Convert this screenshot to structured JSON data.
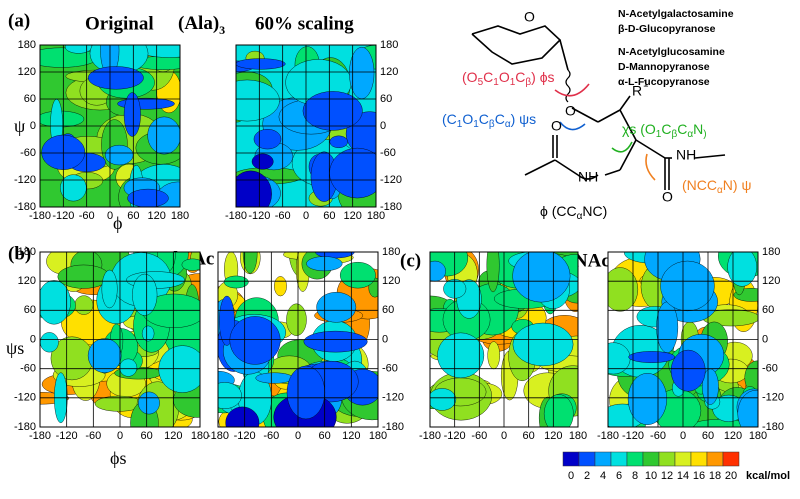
{
  "panel_labels": [
    "(a)",
    "(b)",
    "(c)"
  ],
  "titles": {
    "original": "Original",
    "ala": "(Ala)",
    "ala_sub": "3",
    "scaling": "60% scaling",
    "alpha": "α-GalNAc",
    "beta": "β-GalNAc"
  },
  "axes": {
    "phi": "ϕ",
    "psi": "ψ",
    "phis": "ϕs",
    "psis": "ψs"
  },
  "ticks": [
    "-180",
    "-120",
    "-60",
    "0",
    "60",
    "120",
    "180"
  ],
  "sugars": [
    "N-Acetylgalactosamine",
    "β-D-Glucopyranose",
    "N-Acetylglucosamine",
    "D-Mannopyranose",
    "α-L-Fucopyranose"
  ],
  "molecule": {
    "ring_o": "O",
    "ether_o": "O",
    "r": "R",
    "r_sup": "1",
    "nh1": "NH",
    "nh2": "NH",
    "o1": "O",
    "o2": "O",
    "phi_s": [
      "(O",
      "5",
      "C",
      "1",
      "O",
      "1",
      "C",
      "β",
      ") ϕs"
    ],
    "psi_s": [
      "(C",
      "1",
      "O",
      "1",
      "C",
      "β",
      "C",
      "α",
      ") ψs"
    ],
    "chi_s": [
      "χs (O",
      "1",
      "C",
      "β",
      "C",
      "α",
      "N",
      ")"
    ],
    "psi": [
      "(NCC",
      "α",
      "N) ψ"
    ],
    "phi": [
      "ϕ (CC",
      "α",
      "NC)"
    ]
  },
  "colorbar": {
    "ticks": [
      0,
      2,
      4,
      6,
      8,
      10,
      12,
      14,
      16,
      18,
      20
    ],
    "unit": "kcal/mol",
    "colors": [
      "#0000c8",
      "#0050ff",
      "#00a8ff",
      "#00e0e0",
      "#00e070",
      "#30c830",
      "#90e020",
      "#d8f020",
      "#ffe000",
      "#ff9800",
      "#ff3000"
    ]
  }
}
